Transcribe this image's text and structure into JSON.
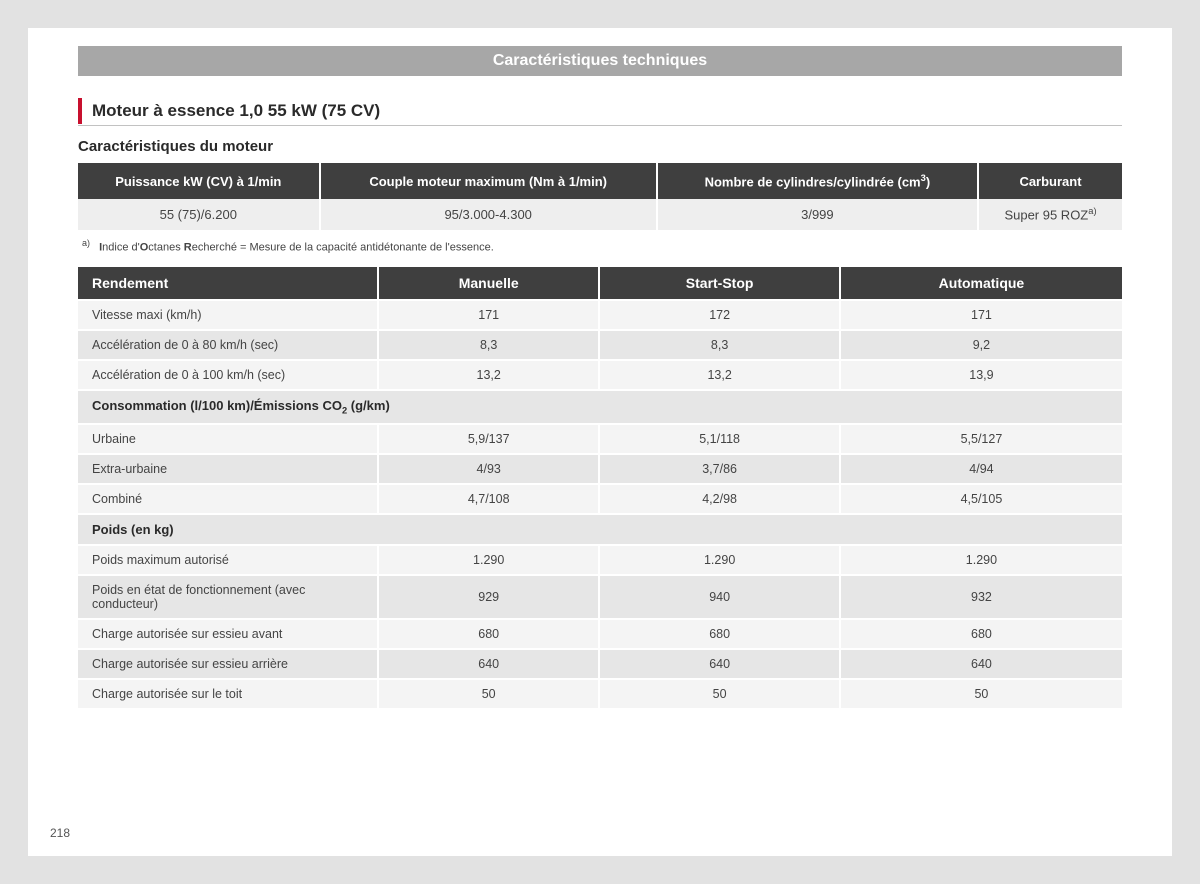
{
  "banner": "Caractéristiques techniques",
  "sectionTitle": "Moteur à essence 1,0 55 kW (75 CV)",
  "subheading": "Caractéristiques du moteur",
  "engineTable": {
    "headers": {
      "h1": "Puissance kW (CV) à 1/min",
      "h2": "Couple moteur maximum (Nm à 1/min)",
      "h3_pre": "Nombre de cylindres/cylindrée (cm",
      "h3_sup": "3",
      "h3_post": ")",
      "h4": "Carburant"
    },
    "row": {
      "c1": "55 (75)/6.200",
      "c2": "95/3.000-4.300",
      "c3": "3/999",
      "c4_pre": "Super 95 ROZ",
      "c4_sup": "a)"
    }
  },
  "footnote": {
    "marker": "a)",
    "bold1": "I",
    "text1": "ndice d'",
    "bold2": "O",
    "text2": "ctanes ",
    "bold3": "R",
    "text3": "echerché = Mesure de la capacité antidétonante de l'essence."
  },
  "perfTable": {
    "headers": {
      "h1": "Rendement",
      "h2": "Manuelle",
      "h3": "Start-Stop",
      "h4": "Automatique"
    },
    "rows": [
      {
        "cls": "row-light",
        "l": "Vitesse maxi (km/h)",
        "a": "171",
        "b": "172",
        "c": "171"
      },
      {
        "cls": "row-dark",
        "l": "Accélération de 0 à 80 km/h (sec)",
        "a": "8,3",
        "b": "8,3",
        "c": "9,2"
      },
      {
        "cls": "row-light",
        "l": "Accélération de 0 à 100 km/h (sec)",
        "a": "13,2",
        "b": "13,2",
        "c": "13,9"
      }
    ],
    "section2": {
      "label_pre": "Consommation (l/100 km)/Émissions CO",
      "label_sub": "2",
      "label_post": " (g/km)"
    },
    "rows2": [
      {
        "cls": "row-light",
        "l": "Urbaine",
        "a": "5,9/137",
        "b": "5,1/118",
        "c": "5,5/127"
      },
      {
        "cls": "row-dark",
        "l": "Extra-urbaine",
        "a": "4/93",
        "b": "3,7/86",
        "c": "4/94"
      },
      {
        "cls": "row-light",
        "l": "Combiné",
        "a": "4,7/108",
        "b": "4,2/98",
        "c": "4,5/105"
      }
    ],
    "section3": {
      "label": "Poids (en kg)"
    },
    "rows3": [
      {
        "cls": "row-light",
        "l": "Poids maximum autorisé",
        "a": "1.290",
        "b": "1.290",
        "c": "1.290"
      },
      {
        "cls": "row-dark",
        "l": "Poids en état de fonctionnement (avec conducteur)",
        "a": "929",
        "b": "940",
        "c": "932"
      },
      {
        "cls": "row-light",
        "l": "Charge autorisée sur essieu avant",
        "a": "680",
        "b": "680",
        "c": "680"
      },
      {
        "cls": "row-dark",
        "l": "Charge autorisée sur essieu arrière",
        "a": "640",
        "b": "640",
        "c": "640"
      },
      {
        "cls": "row-light",
        "l": "Charge autorisée sur le toit",
        "a": "50",
        "b": "50",
        "c": "50"
      }
    ]
  },
  "pageNumber": "218"
}
